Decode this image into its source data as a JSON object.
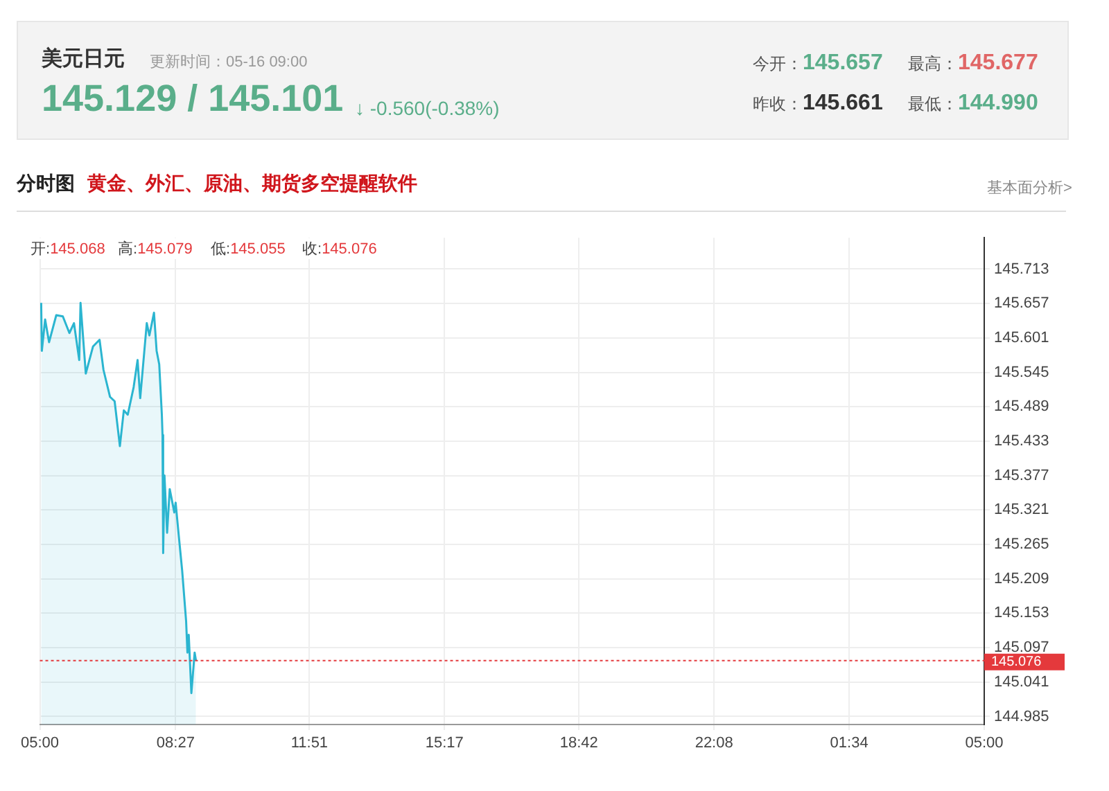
{
  "chart_data": {
    "type": "area",
    "title": "美元日元",
    "subtitle": "更新时间：05-16 09:00",
    "annotations": [
      "145.129 / 145.101",
      "↓ -0.560(-0.38%)",
      "今开：145.657",
      "最高：145.677",
      "昨收：145.661",
      "最低：144.990",
      "分时图",
      "黄金、外汇、原油、期货多空提醒软件",
      "基本面分析>",
      "开:145.068",
      "高:145.079",
      "低:145.055",
      "收:145.076"
    ],
    "x": [
      "--05-16T05:02",
      "--05-16T05:03",
      "--05-16T05:08",
      "--05-16T05:14",
      "--05-16T05:25",
      "--05-16T05:35",
      "--05-16T05:45",
      "--05-16T05:52",
      "--05-16T06:00",
      "--05-16T06:02",
      "--05-16T06:10",
      "--05-16T06:21",
      "--05-16T06:31",
      "--05-16T06:37",
      "--05-16T06:47",
      "--05-16T06:54",
      "--05-16T07:02",
      "--05-16T07:08",
      "--05-16T07:14",
      "--05-16T07:23",
      "--05-16T07:29",
      "--05-16T07:33",
      "--05-16T07:43",
      "--05-16T07:47",
      "--05-16T07:54",
      "--05-16T07:58",
      "--05-16T08:02",
      "--05-16T08:06",
      "--05-16T08:07",
      "--05-16T08:08",
      "--05-16T08:10",
      "--05-16T08:14",
      "--05-16T08:18",
      "--05-16T08:25",
      "--05-16T08:27",
      "--05-16T08:31",
      "--05-16T08:37",
      "--05-16T08:43",
      "--05-16T08:45",
      "--05-16T08:47",
      "--05-16T08:51",
      "--05-16T08:56",
      "--05-16T08:58"
    ],
    "series": [
      {
        "color": "#2bb5d0",
        "values": [
          145.658,
          145.58,
          145.631,
          145.594,
          145.638,
          145.636,
          145.609,
          145.625,
          145.565,
          145.658,
          145.543,
          145.587,
          145.598,
          145.549,
          145.505,
          145.498,
          145.425,
          145.483,
          145.476,
          145.521,
          145.565,
          145.503,
          145.625,
          145.605,
          145.642,
          145.58,
          145.558,
          145.476,
          145.443,
          145.251,
          145.377,
          145.284,
          145.355,
          145.317,
          145.333,
          145.288,
          145.222,
          145.14,
          145.089,
          145.118,
          145.023,
          145.089,
          145.076
        ]
      }
    ],
    "xlim": [
      "--05-16T05:00",
      "--05-17T05:00"
    ],
    "xticks": [
      {
        "value": "--05-16T05:00",
        "label": "05:00"
      },
      {
        "value": "--05-16T08:27",
        "label": "08:27"
      },
      {
        "value": "--05-16T11:51",
        "label": "11:51"
      },
      {
        "value": "--05-16T15:17",
        "label": "15:17"
      },
      {
        "value": "--05-16T18:42",
        "label": "18:42"
      },
      {
        "value": "--05-16T22:08",
        "label": "22:08"
      },
      {
        "value": "--05-17T01:34",
        "label": "01:34"
      },
      {
        "value": "--05-17T05:00",
        "label": "05:00"
      }
    ],
    "ylim": [
      144.972,
      145.764
    ],
    "yticks": [
      144.985,
      145.041,
      145.097,
      145.153,
      145.209,
      145.265,
      145.321,
      145.377,
      145.433,
      145.489,
      145.545,
      145.601,
      145.657,
      145.713
    ],
    "ref_lines": [
      {
        "axis": "y",
        "value": 145.076,
        "label": "145.076",
        "color": "#e4393c",
        "line_style": "dotted"
      }
    ],
    "grid": true,
    "legend": false
  }
}
